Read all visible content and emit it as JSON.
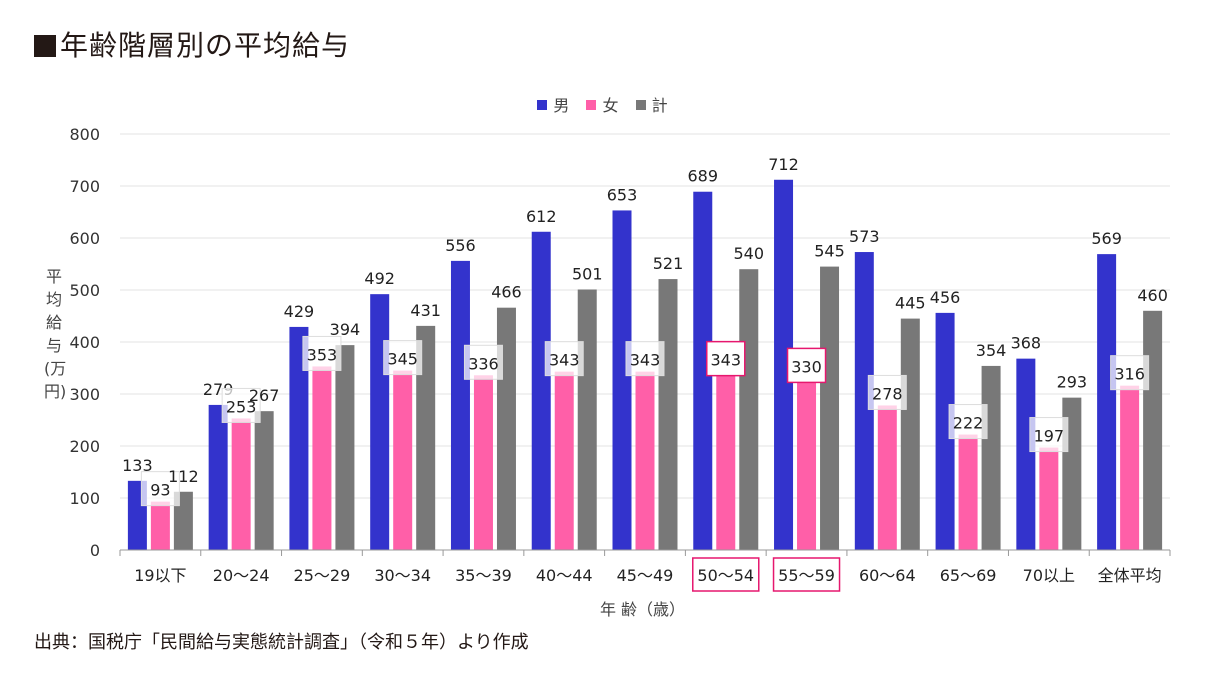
{
  "title": "年齢階層別の平均給与",
  "source": "出典：国税庁「民間給与実態統計調査」（令和５年）より作成",
  "chart_data": {
    "type": "bar",
    "title": "年齢階層別の平均給与",
    "xlabel": "年 齢（歳）",
    "ylabel": "平均給与(万円)",
    "ylim": [
      0,
      800
    ],
    "yticks": [
      0,
      100,
      200,
      300,
      400,
      500,
      600,
      700,
      800
    ],
    "grid": true,
    "legend_position": "top-center",
    "categories": [
      "19以下",
      "20〜24",
      "25〜29",
      "30〜34",
      "35〜39",
      "40〜44",
      "45〜49",
      "50〜54",
      "55〜59",
      "60〜64",
      "65〜69",
      "70以上",
      "全体平均"
    ],
    "highlighted_categories": [
      "50〜54",
      "55〜59"
    ],
    "highlighted_female_labels": [
      "50〜54",
      "55〜59"
    ],
    "series": [
      {
        "name": "男",
        "color": "#3333cc",
        "values": [
          133,
          279,
          429,
          492,
          556,
          612,
          653,
          689,
          712,
          573,
          456,
          368,
          569
        ]
      },
      {
        "name": "女",
        "color": "#ff5fa8",
        "values": [
          93,
          253,
          353,
          345,
          336,
          343,
          343,
          343,
          330,
          278,
          222,
          197,
          316
        ]
      },
      {
        "name": "計",
        "color": "#787878",
        "values": [
          112,
          267,
          394,
          431,
          466,
          501,
          521,
          540,
          545,
          445,
          354,
          293,
          460
        ]
      }
    ],
    "highlight_color": "#e6176e"
  }
}
